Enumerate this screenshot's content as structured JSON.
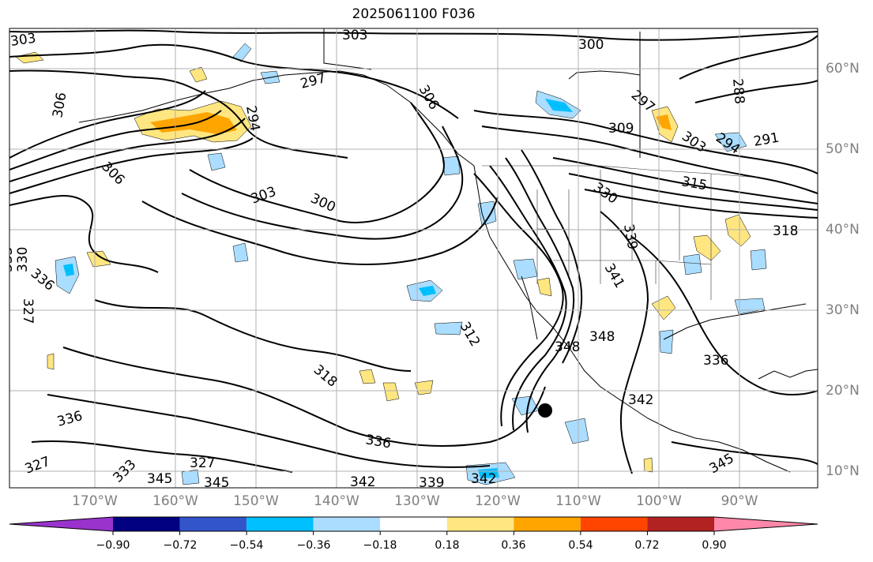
{
  "title": "2025061100 F036",
  "lat_labels": [
    "60°N",
    "50°N",
    "40°N",
    "30°N",
    "20°N",
    "10°N"
  ],
  "lon_labels": [
    "170°W",
    "160°W",
    "150°W",
    "140°W",
    "130°W",
    "120°W",
    "110°W",
    "100°W",
    "90°W"
  ],
  "contour_labels": [
    "303",
    "303",
    "300",
    "297",
    "306",
    "294",
    "309",
    "291",
    "288",
    "303",
    "294",
    "297",
    "306",
    "303",
    "300",
    "315",
    "318",
    "306",
    "330",
    "339",
    "341",
    "333",
    "330",
    "327",
    "336",
    "312",
    "318",
    "336",
    "336",
    "327",
    "333",
    "345",
    "345",
    "342",
    "339",
    "342",
    "345",
    "348",
    "348",
    "336",
    "342",
    "327"
  ],
  "colorbar": {
    "ticks": [
      "−0.90",
      "−0.72",
      "−0.54",
      "−0.36",
      "−0.18",
      "0.18",
      "0.36",
      "0.54",
      "0.72",
      "0.90"
    ],
    "colors": [
      "#9933cc",
      "#000080",
      "#3355cc",
      "#00bfff",
      "#aaddff",
      "#ffffff",
      "#ffe680",
      "#ffa500",
      "#ff4500",
      "#b22222",
      "#ff88aa"
    ]
  }
}
